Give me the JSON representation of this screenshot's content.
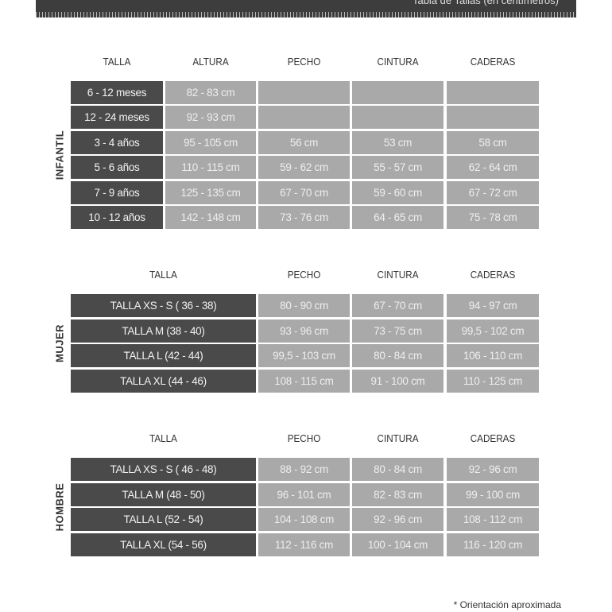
{
  "header": {
    "title": "Tabla de Tallas (en centímetros)"
  },
  "sections": [
    {
      "label": "INFANTIL",
      "headers": [
        "TALLA",
        "ALTURA",
        "PECHO",
        "CINTURA",
        "CADERAS"
      ],
      "rows": [
        [
          "6 - 12 meses",
          "82 - 83 cm",
          "",
          "",
          ""
        ],
        [
          "12 - 24 meses",
          "92 - 93 cm",
          "",
          "",
          ""
        ],
        [
          "3 - 4 años",
          "95 - 105 cm",
          "56 cm",
          "53 cm",
          "58 cm"
        ],
        [
          "5 - 6 años",
          "110 - 115 cm",
          "59 - 62 cm",
          "55 - 57 cm",
          "62 - 64 cm"
        ],
        [
          "7 - 9 años",
          "125 - 135 cm",
          "67 - 70 cm",
          "59 - 60 cm",
          "67 - 72 cm"
        ],
        [
          "10 - 12 años",
          "142 - 148 cm",
          "73 - 76 cm",
          "64 - 65 cm",
          "75 - 78 cm"
        ]
      ]
    },
    {
      "label": "MUJER",
      "headers": [
        "TALLA",
        "PECHO",
        "CINTURA",
        "CADERAS"
      ],
      "rows": [
        [
          "TALLA XS - S ( 36 - 38)",
          "80 - 90 cm",
          "67 - 70 cm",
          "94 - 97 cm"
        ],
        [
          "TALLA M (38 - 40)",
          "93 - 96 cm",
          "73 - 75 cm",
          "99,5 - 102 cm"
        ],
        [
          "TALLA L (42 - 44)",
          "99,5 - 103 cm",
          "80 - 84 cm",
          "106 - 110 cm"
        ],
        [
          "TALLA XL (44 - 46)",
          "108 - 115 cm",
          "91 - 100 cm",
          "110 - 125 cm"
        ]
      ]
    },
    {
      "label": "HOMBRE",
      "headers": [
        "TALLA",
        "PECHO",
        "CINTURA",
        "CADERAS"
      ],
      "rows": [
        [
          "TALLA XS - S ( 46 - 48)",
          "88 - 92 cm",
          "80 - 84 cm",
          "92 - 96 cm"
        ],
        [
          "TALLA M (48 - 50)",
          "96 - 101 cm",
          "82 - 83 cm",
          "99 - 100 cm"
        ],
        [
          "TALLA L (52 - 54)",
          "104 - 108 cm",
          "92 - 96 cm",
          "108 - 112 cm"
        ],
        [
          "TALLA XL (54 - 56)",
          "112 - 116 cm",
          "100 - 104 cm",
          "116 - 120 cm"
        ]
      ]
    }
  ],
  "footnote": "* Orientación aproximada"
}
